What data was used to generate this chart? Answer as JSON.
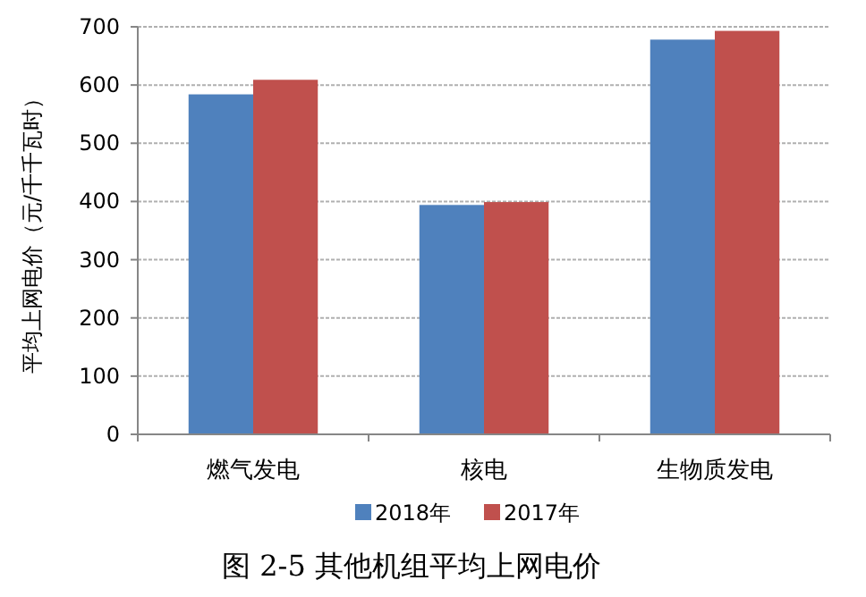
{
  "chart_data": {
    "type": "bar",
    "title": "图 2-5 其他机组平均上网电价",
    "ylabel": "平均上网电价（元/千千瓦时）",
    "categories": [
      "燃气发电",
      "核电",
      "生物质发电"
    ],
    "series": [
      {
        "name": "2018年",
        "color": "#4f81bd",
        "values": [
          584,
          394,
          678
        ]
      },
      {
        "name": "2017年",
        "color": "#c0504d",
        "values": [
          609,
          399,
          693
        ]
      }
    ],
    "ylim": [
      0,
      700
    ],
    "yticks": [
      0,
      100,
      200,
      300,
      400,
      500,
      600,
      700
    ],
    "grid": "y",
    "legend": "bottom"
  }
}
